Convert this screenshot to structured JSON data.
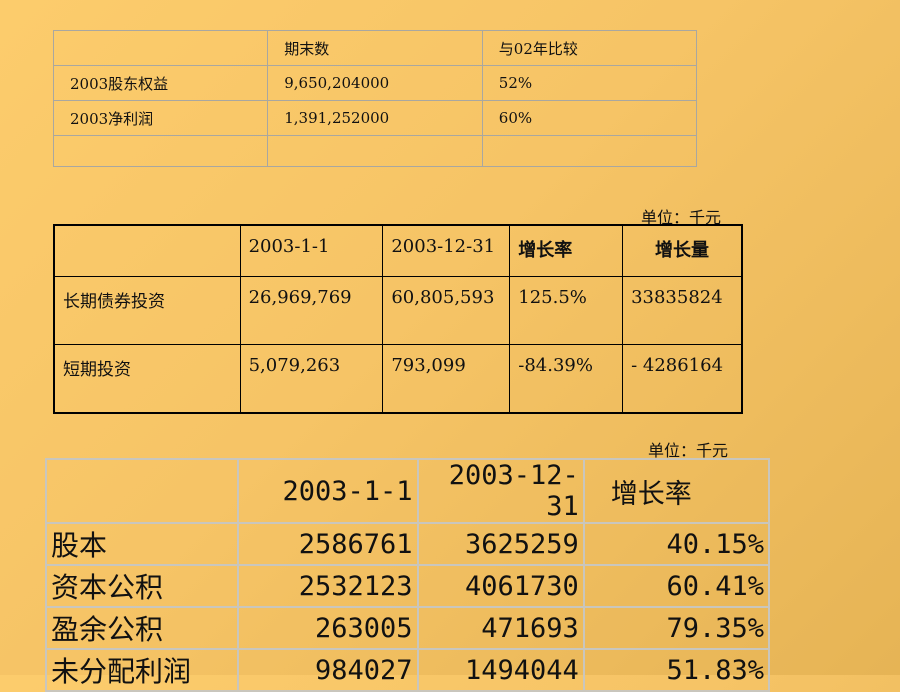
{
  "table1": {
    "header": [
      "",
      "期末数",
      "与02年比较"
    ],
    "rows": [
      [
        "2003股东权益",
        "9,650,204000",
        "52%"
      ],
      [
        "2003净利润",
        "1,391,252000",
        "60%"
      ],
      [
        "",
        "",
        ""
      ]
    ]
  },
  "unit_label_1": "单位：千元",
  "table2": {
    "header": [
      "",
      "2003-1-1",
      "2003-12-31",
      "增长率",
      "增长量"
    ],
    "rows": [
      [
        "长期债券投资",
        "26,969,769",
        "60,805,593",
        "125.5%",
        "33835824"
      ],
      [
        "短期投资",
        "5,079,263",
        "793,099",
        "-84.39%",
        "- 4286164"
      ]
    ]
  },
  "unit_label_2": "单位：千元",
  "table3": {
    "header": [
      "",
      "2003-1-1",
      "2003-12-31",
      "增长率"
    ],
    "rows": [
      [
        "股本",
        "2586761",
        "3625259",
        "40.15%"
      ],
      [
        "资本公积",
        "2532123",
        "4061730",
        "60.41%"
      ],
      [
        "盈余公积",
        "263005",
        "471693",
        "79.35%"
      ],
      [
        "未分配利润",
        "984027",
        "1494044",
        "51.83%"
      ]
    ]
  }
}
